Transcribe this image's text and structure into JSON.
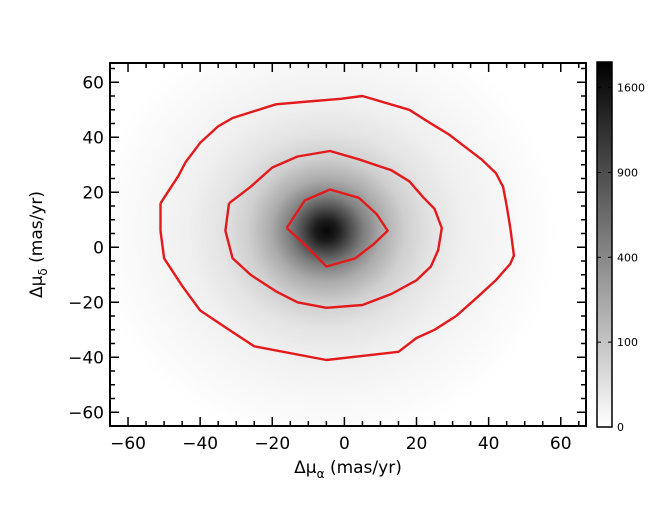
{
  "chart_data": {
    "type": "heatmap",
    "title": "",
    "xlabel": {
      "base": "Δμ",
      "sub": "α",
      "unit": " (mas/yr)"
    },
    "ylabel": {
      "base": "Δμ",
      "sub": "δ",
      "unit": " (mas/yr)"
    },
    "xlim": [
      -65,
      67
    ],
    "ylim": [
      -65,
      67
    ],
    "xticks": [
      -60,
      -40,
      -20,
      0,
      20,
      40,
      60
    ],
    "xtick_labels": [
      "−60",
      "−40",
      "−20",
      "0",
      "20",
      "40",
      "60"
    ],
    "yticks": [
      -60,
      -40,
      -20,
      0,
      20,
      40,
      60
    ],
    "ytick_labels": [
      "−60",
      "−40",
      "−20",
      "0",
      "20",
      "40",
      "60"
    ],
    "grid": false,
    "density_peak": {
      "x": -5,
      "y": 6,
      "value": 1850
    },
    "colorbar": {
      "scale": "sqrt",
      "range": [
        0,
        1850
      ],
      "ticks": [
        0,
        100,
        400,
        900,
        1600
      ],
      "tick_labels": [
        "0",
        "100",
        "400",
        "900",
        "1600"
      ],
      "colormap": "gray_r"
    },
    "contour_color": "#e31a1c",
    "contours": [
      {
        "level": "outer",
        "points": [
          [
            -51,
            16
          ],
          [
            -51,
            6
          ],
          [
            -50,
            -4
          ],
          [
            -45,
            -14
          ],
          [
            -40,
            -23
          ],
          [
            -32,
            -30
          ],
          [
            -25,
            -36
          ],
          [
            -5,
            -41
          ],
          [
            15,
            -38
          ],
          [
            20,
            -33
          ],
          [
            25,
            -30
          ],
          [
            31,
            -25
          ],
          [
            37,
            -18
          ],
          [
            42,
            -12
          ],
          [
            46,
            -6
          ],
          [
            47,
            -3
          ],
          [
            46,
            7
          ],
          [
            45,
            15
          ],
          [
            44,
            22
          ],
          [
            42,
            27
          ],
          [
            38,
            32
          ],
          [
            32,
            38
          ],
          [
            29,
            41
          ],
          [
            24,
            45
          ],
          [
            18,
            50
          ],
          [
            5,
            55
          ],
          [
            -1,
            54
          ],
          [
            -10,
            53
          ],
          [
            -19,
            52
          ],
          [
            -31,
            47
          ],
          [
            -35,
            44
          ],
          [
            -40,
            38
          ],
          [
            -44,
            31
          ],
          [
            -46,
            26
          ],
          [
            -51,
            16
          ]
        ]
      },
      {
        "level": "middle",
        "points": [
          [
            -32,
            16
          ],
          [
            -33,
            6
          ],
          [
            -31,
            -4
          ],
          [
            -26,
            -10
          ],
          [
            -19,
            -16
          ],
          [
            -13,
            -20
          ],
          [
            -5,
            -22
          ],
          [
            5,
            -21
          ],
          [
            13,
            -17
          ],
          [
            20,
            -12
          ],
          [
            24,
            -7
          ],
          [
            26,
            -1
          ],
          [
            27,
            7
          ],
          [
            25,
            14
          ],
          [
            22,
            18
          ],
          [
            18,
            24
          ],
          [
            13,
            28
          ],
          [
            4,
            32
          ],
          [
            -4,
            35
          ],
          [
            -13,
            33
          ],
          [
            -20,
            29
          ],
          [
            -26,
            22
          ],
          [
            -32,
            16
          ]
        ]
      },
      {
        "level": "inner",
        "points": [
          [
            -16,
            7
          ],
          [
            -11,
            1
          ],
          [
            -5,
            -7
          ],
          [
            3,
            -4
          ],
          [
            8,
            1
          ],
          [
            12,
            6
          ],
          [
            9,
            12
          ],
          [
            4,
            18
          ],
          [
            -4,
            21
          ],
          [
            -11,
            17
          ],
          [
            -16,
            7
          ]
        ]
      }
    ]
  }
}
